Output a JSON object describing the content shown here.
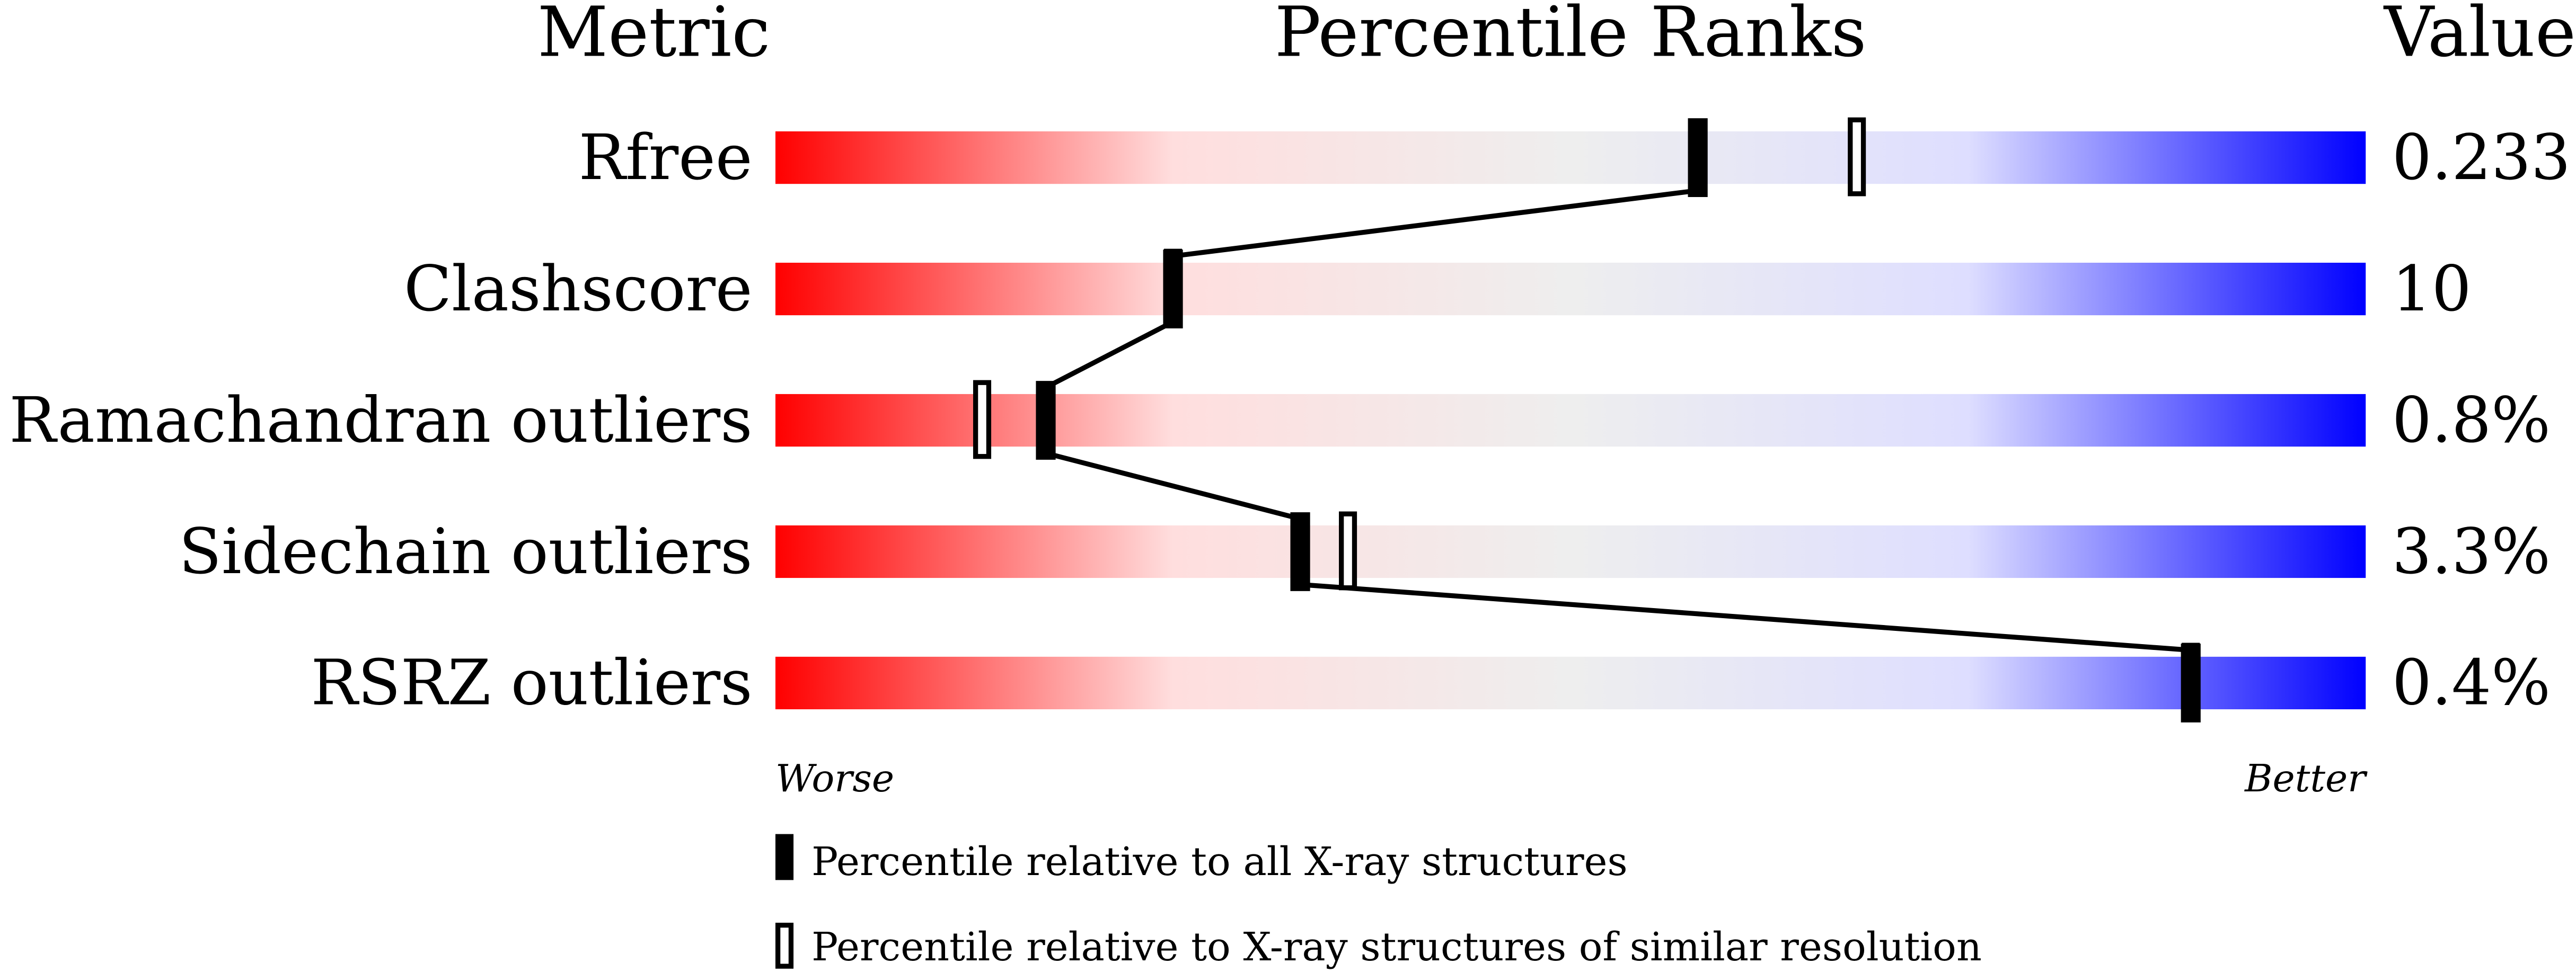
{
  "chart_data": {
    "type": "bar",
    "headers": {
      "metric": "Metric",
      "ranks": "Percentile Ranks",
      "value": "Value"
    },
    "xlim": [
      0,
      100
    ],
    "axis_labels": {
      "left": "Worse",
      "right": "Better"
    },
    "gradient_colors": [
      "#ff0000",
      "#ffdede",
      "#eeeeee",
      "#dedeff",
      "#0000ff"
    ],
    "metrics": [
      {
        "label": "Rfree",
        "value": "0.233",
        "percentile_all": 58,
        "percentile_similar": 68
      },
      {
        "label": "Clashscore",
        "value": "10",
        "percentile_all": 25,
        "percentile_similar": 25
      },
      {
        "label": "Ramachandran outliers",
        "value": "0.8%",
        "percentile_all": 17,
        "percentile_similar": 13
      },
      {
        "label": "Sidechain outliers",
        "value": "3.3%",
        "percentile_all": 33,
        "percentile_similar": 36
      },
      {
        "label": "RSRZ outliers",
        "value": "0.4%",
        "percentile_all": 89,
        "percentile_similar": 89
      }
    ],
    "legend": [
      {
        "marker": "filled",
        "label": "Percentile relative to all X-ray structures"
      },
      {
        "marker": "open",
        "label": "Percentile relative to X-ray structures of similar resolution"
      }
    ]
  }
}
